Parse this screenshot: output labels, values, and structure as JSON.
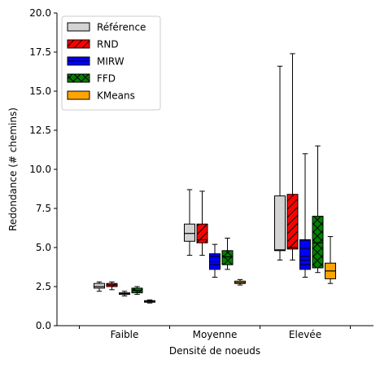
{
  "chart_data": {
    "type": "box",
    "title": "",
    "xlabel": "Densité de noeuds",
    "ylabel": "Redondance (# chemins)",
    "ylim": [
      0,
      20
    ],
    "yticks": [
      "0.0",
      "2.5",
      "5.0",
      "7.5",
      "10.0",
      "12.5",
      "15.0",
      "17.5",
      "20.0"
    ],
    "categories": [
      "Faible",
      "Moyenne",
      "Elevée"
    ],
    "grid": false,
    "legend_position": "top-left",
    "series": [
      {
        "name": "Référence",
        "color": "#d3d3d3",
        "hatch": "none",
        "boxes": [
          {
            "whislo": 2.2,
            "q1": 2.4,
            "med": 2.5,
            "q3": 2.7,
            "whishi": 2.8
          },
          {
            "whislo": 4.5,
            "q1": 5.4,
            "med": 5.9,
            "q3": 6.5,
            "whishi": 8.7
          },
          {
            "whislo": 4.2,
            "q1": 4.8,
            "med": 4.85,
            "q3": 8.3,
            "whishi": 16.6
          }
        ]
      },
      {
        "name": "RND",
        "color": "#ff0000",
        "hatch": "diagonal",
        "boxes": [
          {
            "whislo": 2.3,
            "q1": 2.5,
            "med": 2.6,
            "q3": 2.7,
            "whishi": 2.8
          },
          {
            "whislo": 4.5,
            "q1": 5.3,
            "med": 5.5,
            "q3": 6.5,
            "whishi": 8.6
          },
          {
            "whislo": 4.2,
            "q1": 4.9,
            "med": 5.0,
            "q3": 8.4,
            "whishi": 17.4
          }
        ]
      },
      {
        "name": "MIRW",
        "color": "#0000ff",
        "hatch": "horizontal",
        "boxes": [
          {
            "whislo": 1.9,
            "q1": 2.0,
            "med": 2.05,
            "q3": 2.1,
            "whishi": 2.2
          },
          {
            "whislo": 3.1,
            "q1": 3.6,
            "med": 4.1,
            "q3": 4.6,
            "whishi": 5.2
          },
          {
            "whislo": 3.1,
            "q1": 3.6,
            "med": 4.2,
            "q3": 5.5,
            "whishi": 11.0
          }
        ]
      },
      {
        "name": "FFD",
        "color": "#008000",
        "hatch": "crosshatch",
        "boxes": [
          {
            "whislo": 2.0,
            "q1": 2.1,
            "med": 2.25,
            "q3": 2.4,
            "whishi": 2.5
          },
          {
            "whislo": 3.6,
            "q1": 3.9,
            "med": 4.4,
            "q3": 4.8,
            "whishi": 5.6
          },
          {
            "whislo": 3.4,
            "q1": 3.7,
            "med": 5.3,
            "q3": 7.0,
            "whishi": 11.5
          }
        ]
      },
      {
        "name": "KMeans",
        "color": "#ffa500",
        "hatch": "none",
        "boxes": [
          {
            "whislo": 1.45,
            "q1": 1.5,
            "med": 1.55,
            "q3": 1.6,
            "whishi": 1.65
          },
          {
            "whislo": 2.6,
            "q1": 2.7,
            "med": 2.75,
            "q3": 2.85,
            "whishi": 2.95
          },
          {
            "whislo": 2.7,
            "q1": 3.0,
            "med": 3.5,
            "q3": 4.0,
            "whishi": 5.7
          }
        ]
      }
    ]
  }
}
